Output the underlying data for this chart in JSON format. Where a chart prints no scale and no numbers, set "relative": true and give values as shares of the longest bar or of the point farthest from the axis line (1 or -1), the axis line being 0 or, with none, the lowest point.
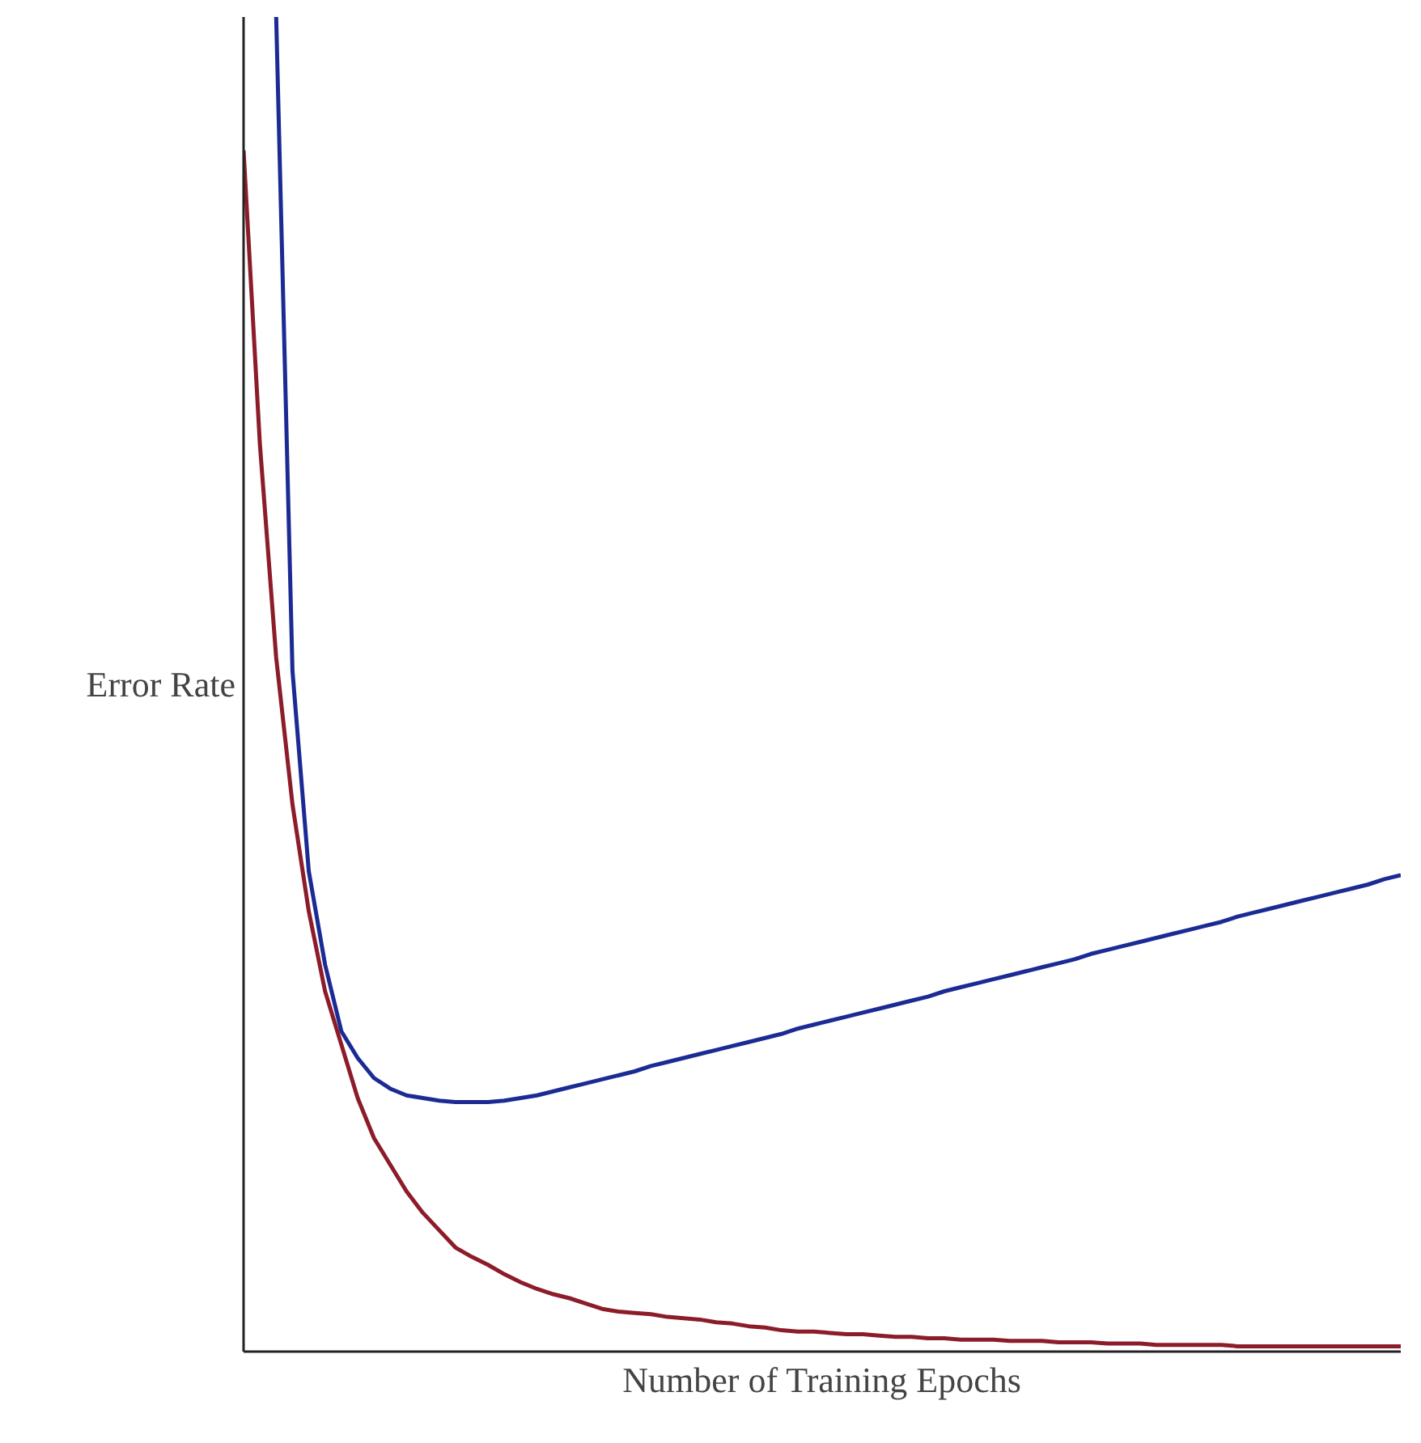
{
  "chart_data": {
    "type": "line",
    "relative": true,
    "xlabel": "Number of Training Epochs",
    "ylabel": "Error Rate",
    "categories": [
      null,
      null,
      null,
      null,
      null,
      null,
      null,
      null,
      null,
      null,
      null,
      null,
      null,
      null,
      null,
      null,
      null,
      null,
      null,
      null,
      null,
      null,
      null,
      null,
      null,
      null,
      null,
      null,
      null,
      null,
      null,
      null,
      null,
      null,
      null,
      null,
      null,
      null,
      null,
      null,
      null,
      null,
      null,
      null,
      null,
      null,
      null,
      null,
      null,
      null,
      null,
      null,
      null,
      null,
      null,
      null,
      null,
      null,
      null,
      null,
      null,
      null,
      null,
      null,
      null,
      null,
      null,
      null,
      null,
      null,
      null,
      null
    ],
    "series": [
      {
        "color": "#1c2b94",
        "values": [
          null,
          null,
          1.0,
          0.51,
          0.36,
          0.29,
          0.24,
          0.22,
          0.205,
          0.197,
          0.192,
          0.19,
          0.188,
          0.187,
          0.187,
          0.187,
          0.188,
          0.19,
          0.192,
          0.195,
          0.198,
          0.201,
          0.204,
          0.207,
          0.21,
          0.214,
          0.217,
          0.22,
          0.223,
          0.226,
          0.229,
          0.232,
          0.235,
          0.238,
          0.242,
          0.245,
          0.248,
          0.251,
          0.254,
          0.257,
          0.26,
          0.263,
          0.266,
          0.27,
          0.273,
          0.276,
          0.279,
          0.282,
          0.285,
          0.288,
          0.291,
          0.294,
          0.298,
          0.301,
          0.304,
          0.307,
          0.31,
          0.313,
          0.316,
          0.319,
          0.322,
          0.326,
          0.329,
          0.332,
          0.335,
          0.338,
          0.341,
          0.344,
          0.347,
          0.35,
          0.354,
          0.357
        ]
      },
      {
        "color": "#8c1c2a",
        "values": [
          0.9,
          0.68,
          0.52,
          0.41,
          0.33,
          0.27,
          0.23,
          0.19,
          0.16,
          0.14,
          0.12,
          0.104,
          0.091,
          0.078,
          0.071,
          0.065,
          0.058,
          0.052,
          0.047,
          0.043,
          0.04,
          0.036,
          0.032,
          0.03,
          0.029,
          0.028,
          0.026,
          0.025,
          0.024,
          0.022,
          0.021,
          0.019,
          0.018,
          0.016,
          0.015,
          0.015,
          0.014,
          0.013,
          0.013,
          0.012,
          0.011,
          0.011,
          0.01,
          0.01,
          0.009,
          0.009,
          0.009,
          0.008,
          0.008,
          0.008,
          0.007,
          0.007,
          0.007,
          0.006,
          0.006,
          0.006,
          0.005,
          0.005,
          0.005,
          0.005,
          0.005,
          0.004,
          0.004,
          0.004,
          0.004,
          0.004,
          0.004,
          0.004,
          0.004,
          0.004,
          0.004,
          0.004
        ]
      }
    ]
  }
}
